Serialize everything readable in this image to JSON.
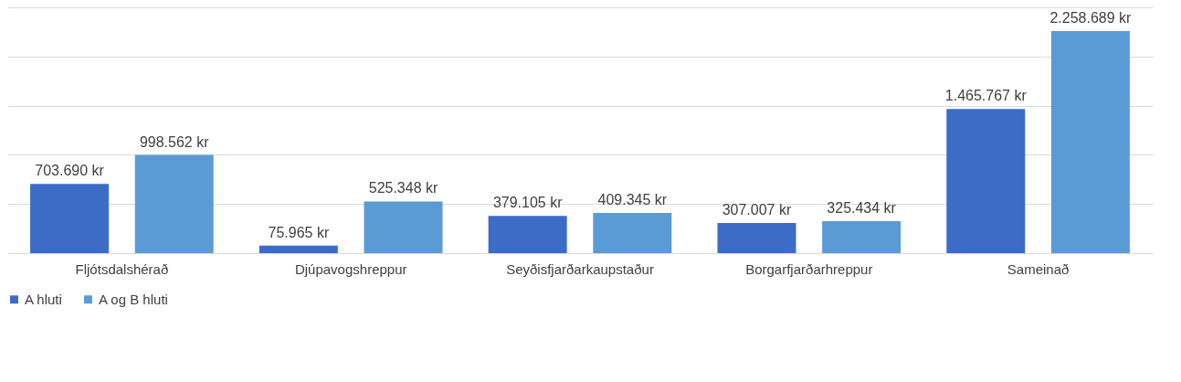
{
  "chart_data": {
    "type": "bar",
    "categories": [
      "Fljótsdalshérað",
      "Djúpavogshreppur",
      "Seyðisfjarðarkaupstaður",
      "Borgarfjarðarhreppur",
      "Sameinað"
    ],
    "series": [
      {
        "name": "A hluti",
        "color": "#3d6cc6",
        "values": [
          703690,
          75965,
          379105,
          307007,
          1465767
        ],
        "value_labels": [
          "703.690 kr",
          "75.965 kr",
          "379.105 kr",
          "307.007 kr",
          "1.465.767 kr"
        ]
      },
      {
        "name": "A og B hluti",
        "color": "#5b9bd5",
        "values": [
          998562,
          525348,
          409345,
          325434,
          2258689
        ],
        "value_labels": [
          "998.562 kr",
          "525.348 kr",
          "409.345 kr",
          "325.434 kr",
          "2.258.689 kr"
        ]
      }
    ],
    "ylim": [
      0,
      2500000
    ],
    "yticks": [
      {
        "value": 0,
        "label": null
      },
      {
        "value": 500000,
        "label": null
      },
      {
        "value": 1000000,
        "label": null
      },
      {
        "value": 1500000,
        "label": null
      },
      {
        "value": 2000000,
        "label": null
      },
      {
        "value": 2500000,
        "label": null
      }
    ],
    "tick_labels": "x",
    "grid": "y",
    "legend": "bottom"
  }
}
